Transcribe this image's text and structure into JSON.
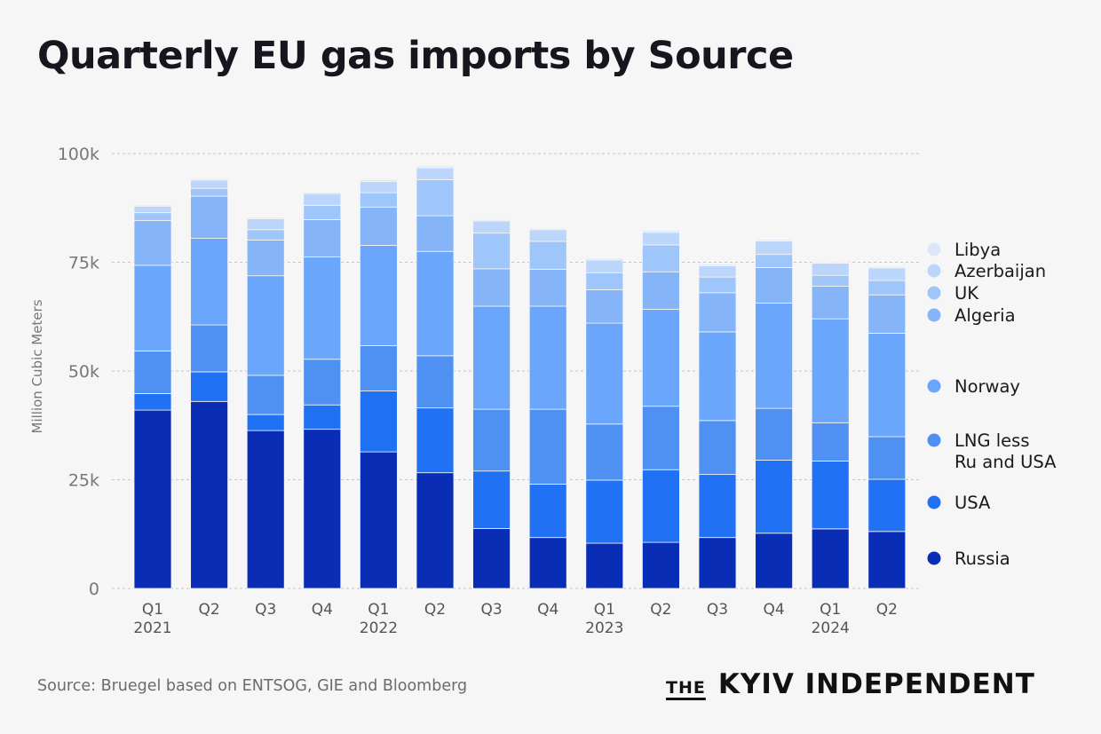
{
  "header": {
    "title": "Quarterly EU gas imports by Source"
  },
  "footer": {
    "source": "Source: Bruegel based on ENTSOG, GIE and Bloomberg",
    "brand_the": "THE",
    "brand_name": "KYIV INDEPENDENT"
  },
  "chart_data": {
    "type": "bar",
    "stacked": true,
    "title": "Quarterly EU gas imports by Source",
    "ylabel": "Million Cubic Meters",
    "ylim": [
      0,
      100000
    ],
    "yticks": [
      0,
      25000,
      50000,
      75000,
      100000
    ],
    "ytick_labels": [
      "0",
      "25k",
      "50k",
      "75k",
      "100k"
    ],
    "grid": true,
    "legend_position": "right",
    "categories": [
      "Q1 2021",
      "Q2 2021",
      "Q3 2021",
      "Q4 2021",
      "Q1 2022",
      "Q2 2022",
      "Q3 2022",
      "Q4 2022",
      "Q1 2023",
      "Q2 2023",
      "Q3 2023",
      "Q4 2023",
      "Q1 2024",
      "Q2 2024"
    ],
    "category_labels": [
      [
        "Q1",
        "2021"
      ],
      [
        "Q2",
        ""
      ],
      [
        "Q3",
        ""
      ],
      [
        "Q4",
        ""
      ],
      [
        "Q1",
        "2022"
      ],
      [
        "Q2",
        ""
      ],
      [
        "Q3",
        ""
      ],
      [
        "Q4",
        ""
      ],
      [
        "Q1",
        "2023"
      ],
      [
        "Q2",
        ""
      ],
      [
        "Q3",
        ""
      ],
      [
        "Q4",
        ""
      ],
      [
        "Q1",
        "2024"
      ],
      [
        "Q2",
        ""
      ]
    ],
    "series": [
      {
        "name": "Russia",
        "legend": [
          "Russia"
        ],
        "color": "#0a2db5",
        "values": [
          41000,
          43000,
          36300,
          36600,
          31400,
          26600,
          13800,
          11700,
          10400,
          10600,
          11700,
          12700,
          13700,
          13100
        ]
      },
      {
        "name": "USA",
        "legend": [
          "USA"
        ],
        "color": "#2171f5",
        "values": [
          3800,
          6800,
          3700,
          5600,
          14000,
          14900,
          13200,
          12300,
          14500,
          16700,
          14500,
          16800,
          15600,
          12000
        ]
      },
      {
        "name": "LNG less Ru and USA",
        "legend": [
          "LNG less",
          "Ru and USA"
        ],
        "color": "#4f90f3",
        "values": [
          9800,
          10800,
          9000,
          10500,
          10400,
          12000,
          14200,
          17200,
          12900,
          14600,
          12400,
          11900,
          8800,
          9800
        ]
      },
      {
        "name": "Norway",
        "legend": [
          "Norway"
        ],
        "color": "#6aa6fb",
        "values": [
          19700,
          19900,
          22900,
          23500,
          23100,
          24000,
          23700,
          23700,
          23200,
          22300,
          20400,
          24200,
          23900,
          23800
        ]
      },
      {
        "name": "Algeria",
        "legend": [
          "Algeria"
        ],
        "color": "#86b4f9",
        "values": [
          10300,
          9700,
          8200,
          8600,
          8800,
          8200,
          8600,
          8500,
          7700,
          8600,
          9000,
          8200,
          7500,
          8800
        ]
      },
      {
        "name": "UK",
        "legend": [
          "UK"
        ],
        "color": "#9fc6fb",
        "values": [
          1800,
          1800,
          2400,
          3300,
          3300,
          8300,
          8200,
          6400,
          3900,
          6200,
          3600,
          3000,
          2500,
          3300
        ]
      },
      {
        "name": "Azerbaijan",
        "legend": [
          "Azerbaijan"
        ],
        "color": "#bcd6fb",
        "values": [
          1500,
          1900,
          2500,
          2700,
          2600,
          2700,
          2800,
          2700,
          2900,
          2900,
          2600,
          3100,
          2800,
          2900
        ]
      },
      {
        "name": "Libya",
        "legend": [
          "Libya"
        ],
        "color": "#dae7fa",
        "values": [
          300,
          300,
          300,
          300,
          400,
          400,
          300,
          300,
          400,
          400,
          300,
          300,
          200,
          300
        ]
      }
    ]
  }
}
